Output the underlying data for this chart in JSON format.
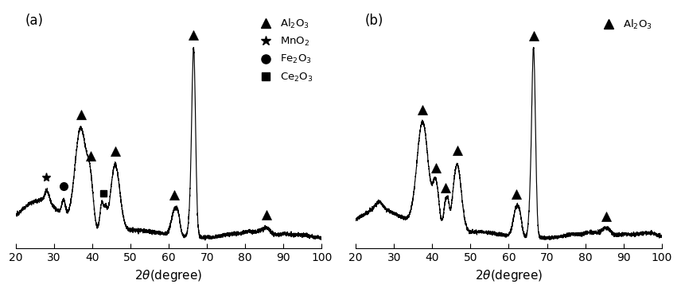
{
  "title_a": "(a)",
  "title_b": "(b)",
  "xlim": [
    20,
    100
  ],
  "xticks": [
    20,
    30,
    40,
    50,
    60,
    70,
    80,
    90,
    100
  ],
  "markers_a": {
    "Al2O3": [
      37.0,
      39.5,
      46.0,
      61.5,
      66.5,
      85.5
    ],
    "MnO2": [
      28.0
    ],
    "Fe2O3": [
      32.5
    ],
    "Ce2O3": [
      43.0
    ]
  },
  "markers_b": {
    "Al2O3": [
      37.5,
      41.0,
      43.5,
      46.5,
      62.0,
      66.5,
      85.5
    ]
  },
  "background_color": "#ffffff",
  "line_color": "#000000",
  "marker_color": "#000000",
  "figsize": [
    8.56,
    3.67
  ],
  "dpi": 100
}
